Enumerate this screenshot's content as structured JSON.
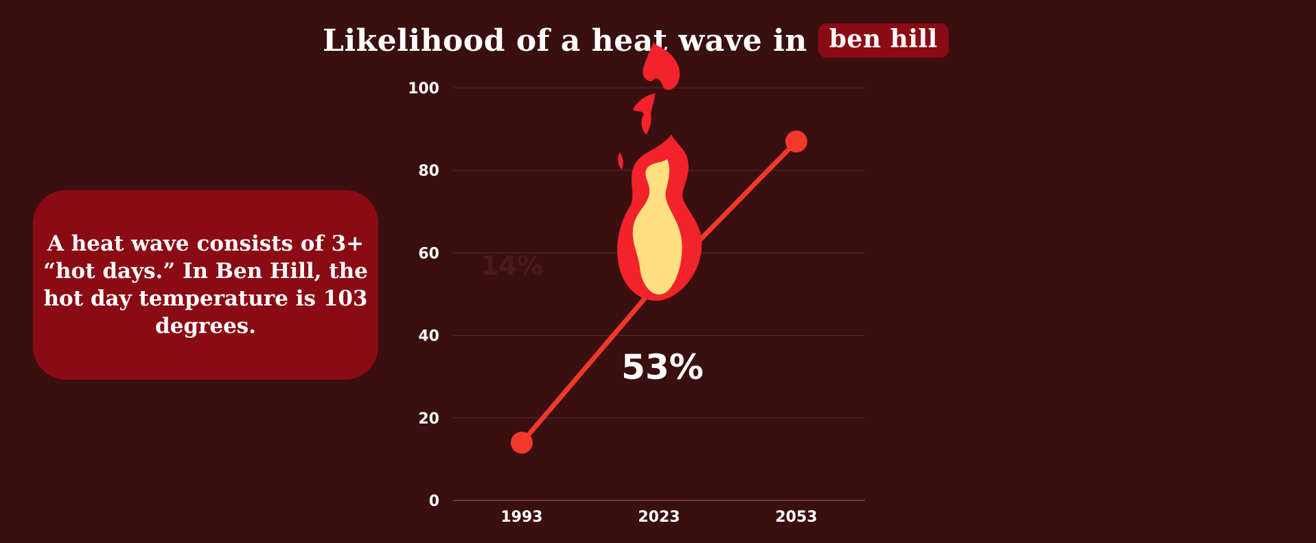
{
  "title": {
    "prefix": "Likelihood of a heat wave in",
    "place": "ben hill"
  },
  "info": {
    "text": "A heat wave consists of 3+ “hot days.” In Ben Hill, the hot day temperature is 103 degrees."
  },
  "colors": {
    "background": "#3a0f10",
    "accent": "#8a0b14",
    "line": "#f2382b",
    "flame_outer": "#f2232a",
    "flame_inner": "#ffdf7f"
  },
  "icons": {
    "flame": "flame-icon"
  },
  "chart_data": {
    "type": "line",
    "categories": [
      "1993",
      "2023",
      "2053"
    ],
    "values": [
      14,
      53,
      87
    ],
    "ylim": [
      0,
      100
    ],
    "yticks": [
      0,
      20,
      40,
      60,
      80,
      100
    ],
    "grid": true,
    "highlight": {
      "index": 1,
      "label": "53%"
    },
    "faded_label": "14%"
  }
}
